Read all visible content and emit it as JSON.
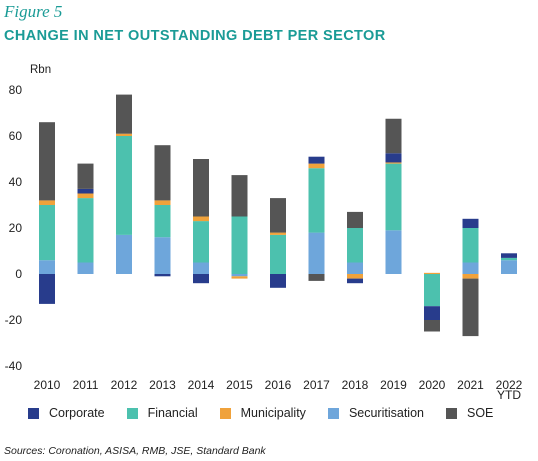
{
  "figure_label": "Figure 5",
  "title": "CHANGE IN NET OUTSTANDING DEBT PER SECTOR",
  "source": "Sources: Coronation, ASISA, RMB, JSE, Standard Bank",
  "chart_data": {
    "type": "bar",
    "stacked": true,
    "ylabel": "Rbn",
    "ylim": [
      -40,
      80
    ],
    "yticks": [
      80,
      60,
      40,
      20,
      0,
      -20,
      -40
    ],
    "grid": false,
    "legend_position": "bottom",
    "categories": [
      "2010",
      "2011",
      "2012",
      "2013",
      "2014",
      "2015",
      "2016",
      "2017",
      "2018",
      "2019",
      "2020",
      "2021",
      "2022 YTD"
    ],
    "category_lines": [
      [
        "2010"
      ],
      [
        "2011"
      ],
      [
        "2012"
      ],
      [
        "2013"
      ],
      [
        "2014"
      ],
      [
        "2015"
      ],
      [
        "2016"
      ],
      [
        "2017"
      ],
      [
        "2018"
      ],
      [
        "2019"
      ],
      [
        "2020"
      ],
      [
        "2021"
      ],
      [
        "2022",
        "YTD"
      ]
    ],
    "series": [
      {
        "name": "Securitisation",
        "color": "#6ea6db",
        "values": [
          6,
          5,
          17,
          16,
          5,
          -1,
          0,
          18,
          5,
          19,
          0,
          5,
          6
        ]
      },
      {
        "name": "Financial",
        "color": "#4cc1ae",
        "values": [
          24,
          28,
          43,
          14,
          18,
          25,
          17,
          28,
          15,
          29,
          -14,
          15,
          1
        ]
      },
      {
        "name": "Municipality",
        "color": "#f0a23b",
        "values": [
          2,
          2,
          1,
          2,
          2,
          -1,
          1,
          2,
          -2,
          0.5,
          0.5,
          -2,
          0
        ]
      },
      {
        "name": "Corporate",
        "color": "#283c8c",
        "values": [
          -13,
          2,
          0,
          -1,
          -4,
          0,
          -6,
          3,
          -2,
          4,
          -6,
          4,
          2
        ]
      },
      {
        "name": "SOE",
        "color": "#555555",
        "values": [
          34,
          11,
          17,
          24,
          25,
          18,
          15,
          -3,
          7,
          15,
          -5,
          -25,
          0
        ]
      }
    ],
    "legend_order": [
      "Corporate",
      "Financial",
      "Municipality",
      "Securitisation",
      "SOE"
    ]
  }
}
